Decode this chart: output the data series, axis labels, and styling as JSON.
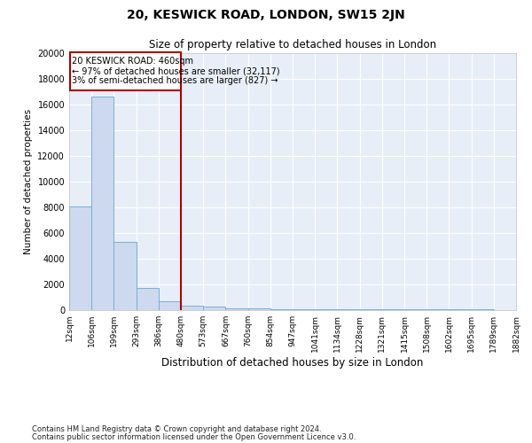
{
  "title": "20, KESWICK ROAD, LONDON, SW15 2JN",
  "subtitle": "Size of property relative to detached houses in London",
  "xlabel": "Distribution of detached houses by size in London",
  "ylabel": "Number of detached properties",
  "footnote1": "Contains HM Land Registry data © Crown copyright and database right 2024.",
  "footnote2": "Contains public sector information licensed under the Open Government Licence v3.0.",
  "annotation_line1": "20 KESWICK ROAD: 460sqm",
  "annotation_line2": "← 97% of detached houses are smaller (32,117)",
  "annotation_line3": "3% of semi-detached houses are larger (827) →",
  "bar_values": [
    8100,
    16600,
    5300,
    1700,
    700,
    350,
    250,
    150,
    120,
    100,
    80,
    70,
    60,
    55,
    50,
    45,
    40,
    38,
    35,
    30
  ],
  "bar_color": "#ccd9ee",
  "bar_edge_color": "#7aaed6",
  "vline_color": "#aa0000",
  "annotation_box_color": "#aa0000",
  "ylim": [
    0,
    20000
  ],
  "tick_labels": [
    "12sqm",
    "106sqm",
    "199sqm",
    "293sqm",
    "386sqm",
    "480sqm",
    "573sqm",
    "667sqm",
    "760sqm",
    "854sqm",
    "947sqm",
    "1041sqm",
    "1134sqm",
    "1228sqm",
    "1321sqm",
    "1415sqm",
    "1508sqm",
    "1602sqm",
    "1695sqm",
    "1789sqm",
    "1882sqm"
  ],
  "bg_color": "#e8eef8",
  "grid_color": "#ffffff",
  "fig_width": 6.0,
  "fig_height": 5.0,
  "fig_dpi": 100
}
